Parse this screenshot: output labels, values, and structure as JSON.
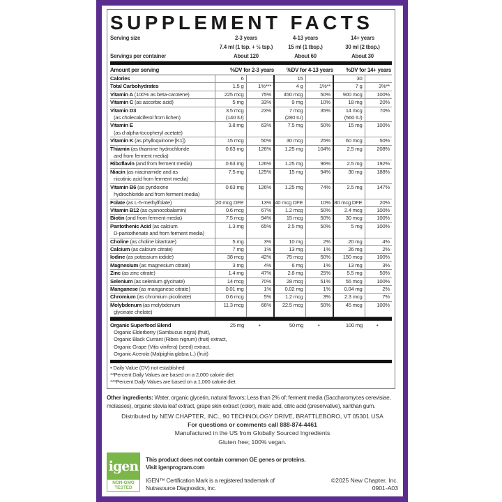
{
  "title": "SUPPLEMENT FACTS",
  "brand_color": "#5b2d8e",
  "serving": {
    "size_label": "Serving size",
    "servings_label": "Servings per container",
    "groups": [
      {
        "age": "2-3 years",
        "size": "7.4 ml (1 tsp. + ½ tsp.)",
        "servings": "About 120"
      },
      {
        "age": "4-13 years",
        "size": "15 ml (1 tbsp.)",
        "servings": "About 60"
      },
      {
        "age": "14+ years",
        "size": "30 ml (2 tbsp.)",
        "servings": "About 30"
      }
    ]
  },
  "header": {
    "amount": "Amount per serving",
    "dv1": "%DV for 2-3 years",
    "dv2": "%DV for 4-13 years",
    "dv3": "%DV for 14+ years"
  },
  "rows": [
    {
      "name": "Calories",
      "desc": "",
      "v": [
        "6",
        "",
        "15",
        "",
        "30",
        ""
      ]
    },
    {
      "name": "Total Carbohydrates",
      "desc": "",
      "v": [
        "1.5 g",
        "1%***",
        "4 g",
        "1%**",
        "7 g",
        "3%**"
      ]
    },
    {
      "name": "Vitamin A",
      "desc": " (100% as beta-carotene)",
      "v": [
        "225 mcg",
        "75%",
        "450 mcg",
        "50%",
        "900 mcg",
        "100%"
      ]
    },
    {
      "name": "Vitamin C",
      "desc": " (as ascorbic acid)",
      "v": [
        "5 mg",
        "33%",
        "9 mg",
        "10%",
        "18 mg",
        "20%"
      ]
    },
    {
      "name": "Vitamin D3",
      "desc": "\n(as cholecalciferol from lichen)",
      "v": [
        "3.5 mcg\n(140 IU)",
        "23%",
        "7 mcg\n(280 IU)",
        "35%",
        "14 mcg\n(560 IU)",
        "70%"
      ]
    },
    {
      "name": "Vitamin E",
      "desc": "\n(as d-alpha-tocopheryl acetate)",
      "v": [
        "3.8 mg",
        "63%",
        "7.5 mg",
        "50%",
        "15 mg",
        "100%"
      ]
    },
    {
      "name": "Vitamin K",
      "desc": " (as phylloquinone [K1])",
      "v": [
        "15 mcg",
        "50%",
        "30 mcg",
        "25%",
        "60 mcg",
        "50%"
      ]
    },
    {
      "name": "Thiamin",
      "desc": " (as thiamine hydrochloride\nand from ferment media)",
      "v": [
        "0.63 mg",
        "126%",
        "1.25 mg",
        "104%",
        "2.5 mg",
        "208%"
      ]
    },
    {
      "name": "Riboflavin",
      "desc": " (and from ferment media)",
      "v": [
        "0.63 mg",
        "126%",
        "1.25 mg",
        "96%",
        "2.5 mg",
        "192%"
      ]
    },
    {
      "name": "Niacin",
      "desc": " (as niacinamide and as\nnicotinic acid from ferment media)",
      "v": [
        "7.5 mg",
        "125%",
        "15 mg",
        "94%",
        "30 mg",
        "188%"
      ]
    },
    {
      "name": "Vitamin B6",
      "desc": " (as pyridoxine\nhydrochloride and from ferment media)",
      "v": [
        "0.63 mg",
        "126%",
        "1.25 mg",
        "74%",
        "2.5 mg",
        "147%"
      ]
    },
    {
      "name": "Folate",
      "desc": " (as L-5-methylfolate)",
      "v": [
        "20 mcg DFE",
        "13%",
        "40 mcg DFE",
        "10%",
        "80 mcg DFE",
        "20%"
      ]
    },
    {
      "name": "Vitamin B12",
      "desc": " (as cyanocobalamin)",
      "v": [
        "0.6 mcg",
        "67%",
        "1.2 mcg",
        "50%",
        "2.4 mcg",
        "100%"
      ]
    },
    {
      "name": "Biotin",
      "desc": " (and from ferment media)",
      "v": [
        "7.5 mcg",
        "94%",
        "15 mcg",
        "50%",
        "30 mcg",
        "100%"
      ]
    },
    {
      "name": "Pantothenic Acid",
      "desc": " (as calcium\nD-pantothenate and from ferment media)",
      "v": [
        "1.3 mg",
        "65%",
        "2.5 mg",
        "50%",
        "5 mg",
        "100%"
      ]
    },
    {
      "name": "Choline",
      "desc": " (as choline bitartrate)",
      "v": [
        "5 mg",
        "3%",
        "10 mg",
        "2%",
        "20 mg",
        "4%"
      ]
    },
    {
      "name": "Calcium",
      "desc": " (as calcium citrate)",
      "v": [
        "7 mg",
        "1%",
        "13 mg",
        "1%",
        "26 mg",
        "2%"
      ]
    },
    {
      "name": "Iodine",
      "desc": " (as potassium iodide)",
      "v": [
        "38 mcg",
        "42%",
        "75 mcg",
        "50%",
        "150 mcg",
        "100%"
      ]
    },
    {
      "name": "Magnesium",
      "desc": " (as magnesium citrate)",
      "v": [
        "3 mg",
        "4%",
        "6 mg",
        "1%",
        "13 mg",
        "3%"
      ]
    },
    {
      "name": "Zinc",
      "desc": " (as zinc citrate)",
      "v": [
        "1.4 mg",
        "47%",
        "2.8 mg",
        "25%",
        "5.5 mg",
        "50%"
      ]
    },
    {
      "name": "Selenium",
      "desc": " (as selenium glycinate)",
      "v": [
        "14 mcg",
        "70%",
        "28 mcg",
        "51%",
        "55 mcg",
        "100%"
      ]
    },
    {
      "name": "Manganese",
      "desc": " (as manganese citrate)",
      "v": [
        "0.01 mg",
        "1%",
        "0.02 mg",
        "1%",
        "0.04 mg",
        "2%"
      ]
    },
    {
      "name": "Chromium",
      "desc": " (as chromium picolinate)",
      "v": [
        "0.6 mcg",
        "5%",
        "1.2 mcg",
        "3%",
        "2.3 mcg",
        "7%"
      ]
    },
    {
      "name": "Molybdenum",
      "desc": " (as molybdenum\nglycinate chelate)",
      "v": [
        "11.3 mcg",
        "66%",
        "22.5 mcg",
        "50%",
        "45 mcg",
        "100%"
      ]
    }
  ],
  "blend": {
    "name": "Organic Superfood Blend",
    "ingredients": "Organic Elderberry (Sambucus nigra) (fruit),\nOrganic Black Currant (Ribes nigrum) (fruit) extract,\nOrganic Grape (Vitis vinifera) (seed) extract,\nOrganic Acerola (Malpighia glabra L.) (fruit)",
    "v": [
      "25 mg",
      "•",
      "50 mg",
      "•",
      "100 mg",
      "•"
    ]
  },
  "footnotes": [
    "• Daily Value (DV) not established",
    "**Percent Daily Values are based on a 2,000 calorie diet",
    "***Percent Daily Values are based on a 1,000 calorie diet"
  ],
  "other_ingredients": {
    "label": "Other ingredients:",
    "text": " Water, organic glycerin, natural flavors; Less than 2% of: ferment media (Saccharomyces cerevisiae, molasses), organic stevia leaf extract, grape skin extract (color), malic acid, citric acid (preservative), xanthan gum."
  },
  "distributor": "Distributed by NEW CHAPTER, INC., 90 TECHNOLOGY DRIVE, BRATTLEBORO, VT 05301 USA",
  "questions": "For questions or comments call 888-874-4461",
  "manufactured": "Manufactured in the US from Globally Sourced Ingredients",
  "claims": "Gluten free; 100% vegan.",
  "igen": {
    "logo_text": "igen",
    "badge": "NON-GMO TESTED",
    "logo_color": "#7ab648",
    "line1": "This product does not contain common GE genes or proteins.",
    "line2": "Visit igenprogram.com",
    "tm1": "IGEN™ Certification Mark is a registered trademark of",
    "tm2": "Nutrasource Diagnostics, Inc."
  },
  "copyright": "©2025 New Chapter, Inc.",
  "code": "0901-A03"
}
